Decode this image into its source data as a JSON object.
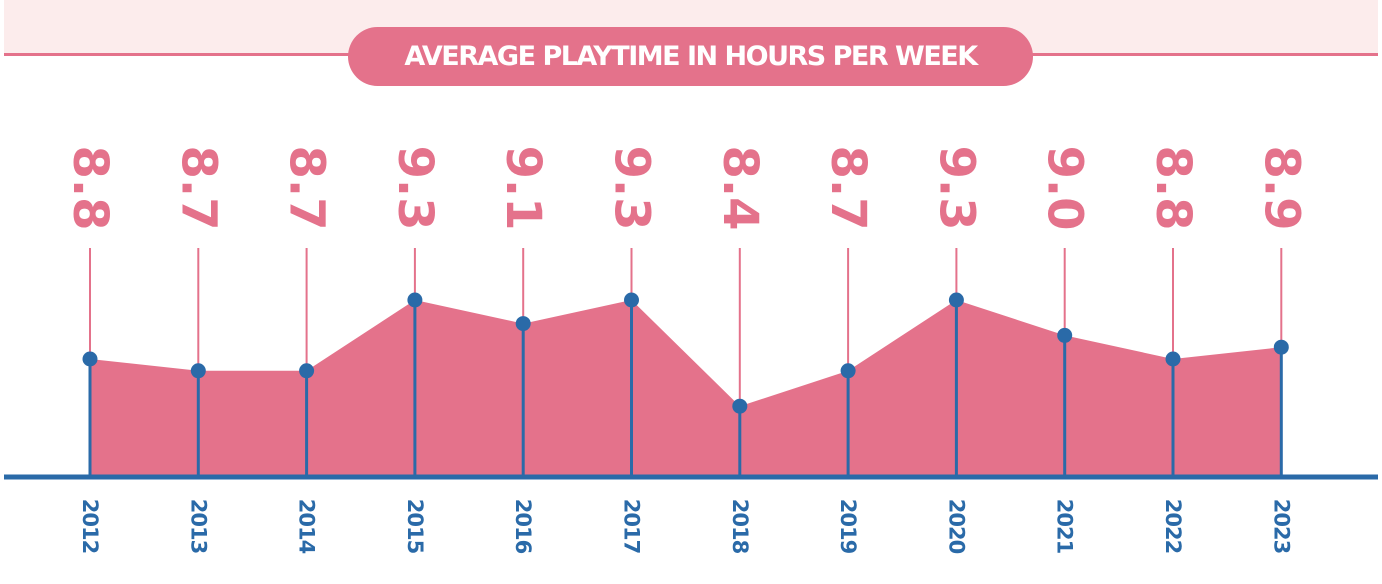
{
  "chart_data": {
    "type": "area",
    "title": "AVERAGE PLAYTIME IN HOURS PER WEEK",
    "xlabel": "",
    "ylabel": "",
    "categories": [
      "2012",
      "2013",
      "2014",
      "2015",
      "2016",
      "2017",
      "2018",
      "2019",
      "2020",
      "2021",
      "2022",
      "2023"
    ],
    "values": [
      8.8,
      8.7,
      8.7,
      9.3,
      9.1,
      9.3,
      8.4,
      8.7,
      9.3,
      9.0,
      8.8,
      8.9
    ],
    "value_labels": [
      "8.8",
      "8.7",
      "8.7",
      "9.3",
      "9.1",
      "9.3",
      "8.4",
      "8.7",
      "9.3",
      "9.0",
      "8.8",
      "8.9"
    ],
    "ylim": [
      7.8,
      9.3
    ],
    "grid": false,
    "colors": {
      "fill": "#e4728b",
      "line": "#2a6aa8",
      "band": "#fcecec"
    }
  }
}
